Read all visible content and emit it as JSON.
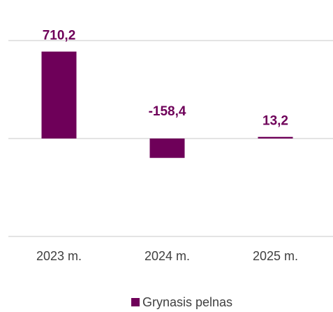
{
  "chart_data": {
    "type": "bar",
    "categories": [
      "2023 m.",
      "2024 m.",
      "2025 m."
    ],
    "series": [
      {
        "name": "Grynasis pelnas",
        "color": "#6e0059",
        "values": [
          710.2,
          -158.4,
          13.2
        ],
        "value_labels": [
          "710,2",
          "-158,4",
          "13,2"
        ]
      }
    ],
    "ylim": [
      -800,
      800
    ],
    "yticks": [
      -800,
      0,
      800
    ],
    "grid": true,
    "legend": "bottom"
  }
}
